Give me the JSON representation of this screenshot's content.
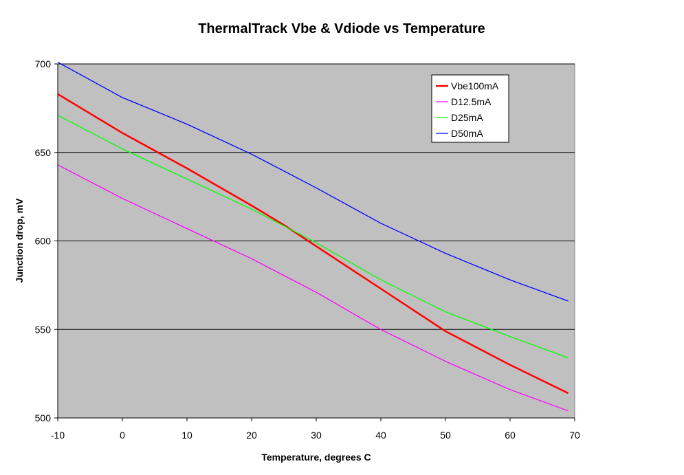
{
  "chart_data": {
    "type": "line",
    "title": "ThermalTrack Vbe & Vdiode vs Temperature",
    "xlabel": "Temperature, degrees C",
    "ylabel": "Junction drop, mV",
    "xlim": [
      -10,
      70
    ],
    "ylim": [
      500,
      700
    ],
    "x_ticks": [
      -10,
      0,
      10,
      20,
      30,
      40,
      50,
      60,
      70
    ],
    "y_ticks": [
      500,
      550,
      600,
      650,
      700
    ],
    "grid": "horizontal",
    "legend_position": "top-right",
    "plot_background": "#c0c0c0",
    "series": [
      {
        "name": "Vbe100mA",
        "color": "#ff0000",
        "x": [
          -10,
          0,
          10,
          20,
          25,
          30,
          40,
          50,
          60,
          69
        ],
        "y": [
          683,
          661,
          641,
          620,
          609,
          597,
          573,
          549,
          530,
          514
        ]
      },
      {
        "name": "D12.5mA",
        "color": "#ff00ff",
        "x": [
          -10,
          0,
          10,
          20,
          30,
          40,
          50,
          60,
          69
        ],
        "y": [
          643,
          624,
          607,
          590,
          571,
          550,
          532,
          516,
          504
        ]
      },
      {
        "name": "D25mA",
        "color": "#00ff00",
        "x": [
          -10,
          0,
          10,
          20,
          30,
          40,
          50,
          60,
          69
        ],
        "y": [
          671,
          652,
          635,
          618,
          599,
          578,
          560,
          546,
          534
        ]
      },
      {
        "name": "D50mA",
        "color": "#0000ff",
        "x": [
          -10,
          0,
          10,
          20,
          30,
          40,
          50,
          60,
          69
        ],
        "y": [
          701,
          681,
          666,
          649,
          630,
          610,
          593,
          578,
          566
        ]
      }
    ]
  }
}
